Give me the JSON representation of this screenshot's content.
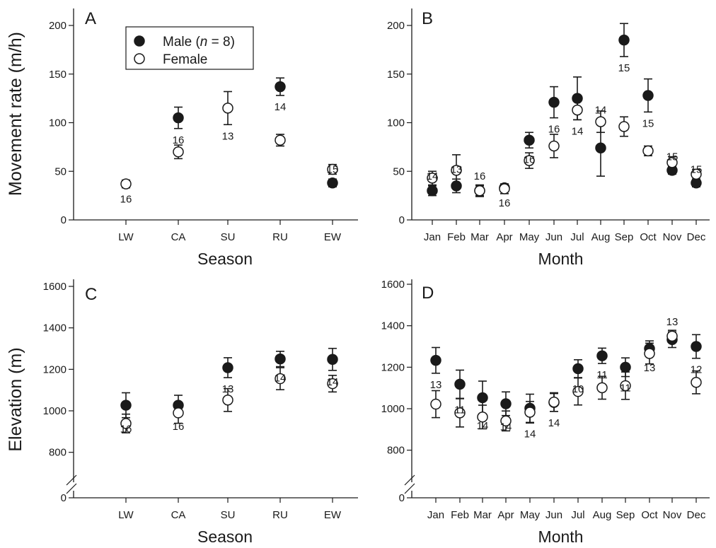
{
  "chart_data": [
    {
      "panel": "A",
      "type": "scatter",
      "xlabel": "Season",
      "ylabel": "Movement rate (m/h)",
      "categories": [
        "LW",
        "CA",
        "SU",
        "RU",
        "EW"
      ],
      "ylim": [
        0,
        200
      ],
      "yticks": [
        0,
        50,
        100,
        150,
        200
      ],
      "legend": {
        "placement": "top-left",
        "items": [
          {
            "series": "Male",
            "label_main": "Male (",
            "label_italic": "n",
            "label_tail": " = 8)"
          },
          {
            "series": "Female",
            "label_main": "Female"
          }
        ]
      },
      "series": [
        {
          "name": "Male",
          "marker": "filled",
          "values": [
            null,
            105,
            null,
            137,
            38
          ],
          "err": [
            null,
            11,
            null,
            9,
            4
          ]
        },
        {
          "name": "Female",
          "marker": "open",
          "values": [
            37,
            70,
            115,
            82,
            52
          ],
          "err": [
            4,
            7,
            17,
            6,
            5
          ]
        }
      ],
      "n_labels": [
        {
          "index": 0,
          "text": "16",
          "pos": "below"
        },
        {
          "index": 1,
          "text": "16",
          "pos": "below"
        },
        {
          "index": 2,
          "text": "13",
          "pos": "below"
        },
        {
          "index": 3,
          "text": "14",
          "pos": "below"
        },
        {
          "index": 4,
          "text": "15",
          "pos": "above"
        }
      ]
    },
    {
      "panel": "B",
      "type": "scatter",
      "xlabel": "Month",
      "ylabel": "",
      "categories": [
        "Jan",
        "Feb",
        "Mar",
        "Apr",
        "May",
        "Jun",
        "Jul",
        "Aug",
        "Sep",
        "Oct",
        "Nov",
        "Dec"
      ],
      "ylim": [
        0,
        200
      ],
      "yticks": [
        0,
        50,
        100,
        150,
        200
      ],
      "series": [
        {
          "name": "Male",
          "marker": "filled",
          "values": [
            30,
            35,
            30,
            33,
            82,
            121,
            125,
            74,
            185,
            128,
            51,
            38
          ],
          "err": [
            5,
            7,
            5,
            4,
            8,
            16,
            22,
            29,
            17,
            17,
            4,
            4
          ]
        },
        {
          "name": "Female",
          "marker": "open",
          "values": [
            43,
            51,
            30,
            32,
            61,
            76,
            113,
            101,
            96,
            71,
            59,
            47
          ],
          "err": [
            7,
            16,
            6,
            5,
            8,
            12,
            10,
            11,
            10,
            5,
            6,
            5
          ]
        }
      ],
      "n_labels": [
        {
          "index": 0,
          "text": "14",
          "pos": "above"
        },
        {
          "index": 1,
          "text": "13",
          "pos": "above"
        },
        {
          "index": 2,
          "text": "16",
          "pos": "above"
        },
        {
          "index": 3,
          "text": "16",
          "pos": "below"
        },
        {
          "index": 4,
          "text": "16",
          "pos": "below"
        },
        {
          "index": 5,
          "text": "16",
          "pos": "below"
        },
        {
          "index": 6,
          "text": "14",
          "pos": "below"
        },
        {
          "index": 7,
          "text": "14",
          "pos": "above"
        },
        {
          "index": 8,
          "text": "15",
          "pos": "below"
        },
        {
          "index": 9,
          "text": "15",
          "pos": "below"
        },
        {
          "index": 10,
          "text": "15",
          "pos": "above"
        },
        {
          "index": 11,
          "text": "15",
          "pos": "above"
        }
      ]
    },
    {
      "panel": "C",
      "type": "scatter",
      "xlabel": "Season",
      "ylabel": "Elevation (m)",
      "categories": [
        "LW",
        "CA",
        "SU",
        "RU",
        "EW"
      ],
      "ylim": [
        700,
        1600
      ],
      "axis_break": true,
      "yticks": [
        0,
        800,
        1000,
        1200,
        1400,
        1600
      ],
      "series": [
        {
          "name": "Male",
          "marker": "filled",
          "values": [
            1027,
            1027,
            1208,
            1250,
            1248
          ],
          "err": [
            60,
            48,
            48,
            37,
            53
          ]
        },
        {
          "name": "Female",
          "marker": "open",
          "values": [
            939,
            990,
            1052,
            1155,
            1131
          ],
          "err": [
            45,
            50,
            55,
            53,
            40
          ]
        }
      ],
      "n_labels": [
        {
          "index": 0,
          "text": "16",
          "pos": "below"
        },
        {
          "index": 1,
          "text": "16",
          "pos": "below"
        },
        {
          "index": 2,
          "text": "13",
          "pos": "below"
        },
        {
          "index": 3,
          "text": "14",
          "pos": "below"
        },
        {
          "index": 4,
          "text": "14",
          "pos": "below"
        }
      ]
    },
    {
      "panel": "D",
      "type": "scatter",
      "xlabel": "Month",
      "ylabel": "",
      "categories": [
        "Jan",
        "Feb",
        "Mar",
        "Apr",
        "May",
        "Jun",
        "Jul",
        "Aug",
        "Sep",
        "Oct",
        "Nov",
        "Dec"
      ],
      "ylim": [
        700,
        1600
      ],
      "axis_break": true,
      "yticks": [
        0,
        800,
        1000,
        1200,
        1400,
        1600
      ],
      "series": [
        {
          "name": "Male",
          "marker": "filled",
          "values": [
            1233,
            1118,
            1053,
            1024,
            1002,
            1030,
            1193,
            1255,
            1200,
            1290,
            1333,
            1300
          ],
          "err": [
            62,
            68,
            80,
            57,
            68,
            43,
            43,
            37,
            45,
            37,
            38,
            57
          ]
        },
        {
          "name": "Female",
          "marker": "open",
          "values": [
            1022,
            980,
            960,
            941,
            983,
            1032,
            1083,
            1101,
            1111,
            1266,
            1350,
            1127
          ],
          "err": [
            65,
            68,
            57,
            48,
            52,
            45,
            65,
            55,
            66,
            50,
            28,
            55
          ]
        }
      ],
      "n_labels": [
        {
          "index": 0,
          "text": "13",
          "pos": "below"
        },
        {
          "index": 1,
          "text": "11",
          "pos": "below"
        },
        {
          "index": 2,
          "text": "14",
          "pos": "below"
        },
        {
          "index": 3,
          "text": "14",
          "pos": "below"
        },
        {
          "index": 4,
          "text": "14",
          "pos": "below"
        },
        {
          "index": 5,
          "text": "14",
          "pos": "below"
        },
        {
          "index": 6,
          "text": "10",
          "pos": "below"
        },
        {
          "index": 7,
          "text": "11",
          "pos": "below"
        },
        {
          "index": 8,
          "text": "11",
          "pos": "below"
        },
        {
          "index": 9,
          "text": "13",
          "pos": "below"
        },
        {
          "index": 10,
          "text": "13",
          "pos": "above"
        },
        {
          "index": 11,
          "text": "12",
          "pos": "below"
        }
      ]
    }
  ]
}
